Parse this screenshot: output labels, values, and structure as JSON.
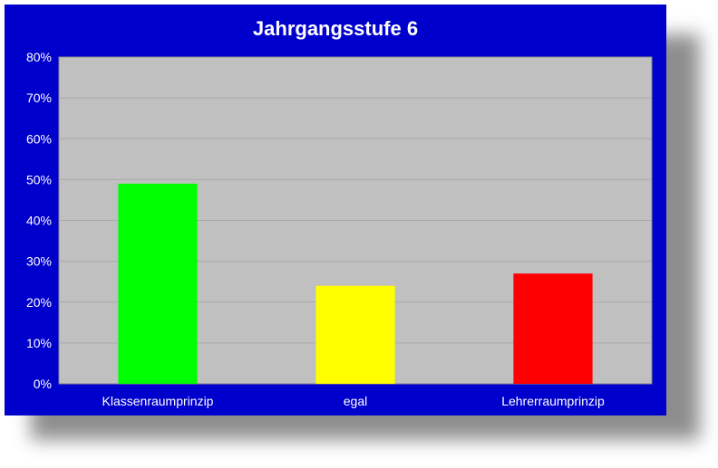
{
  "chart_data": {
    "type": "bar",
    "title": "Jahrgangsstufe 6",
    "categories": [
      "Klassenraumprinzip",
      "egal",
      "Lehrerraumprinzip"
    ],
    "values": [
      49,
      24,
      27
    ],
    "colors": [
      "#00ff00",
      "#ffff00",
      "#ff0000"
    ],
    "ylim": [
      0,
      80
    ],
    "ytick_step": 10,
    "ytick_suffix": "%",
    "grid": true,
    "legend": "none",
    "plot_background": "#c0c0c0",
    "frame_background": "#0000cc",
    "gridline_color": "#a8a8a8"
  }
}
